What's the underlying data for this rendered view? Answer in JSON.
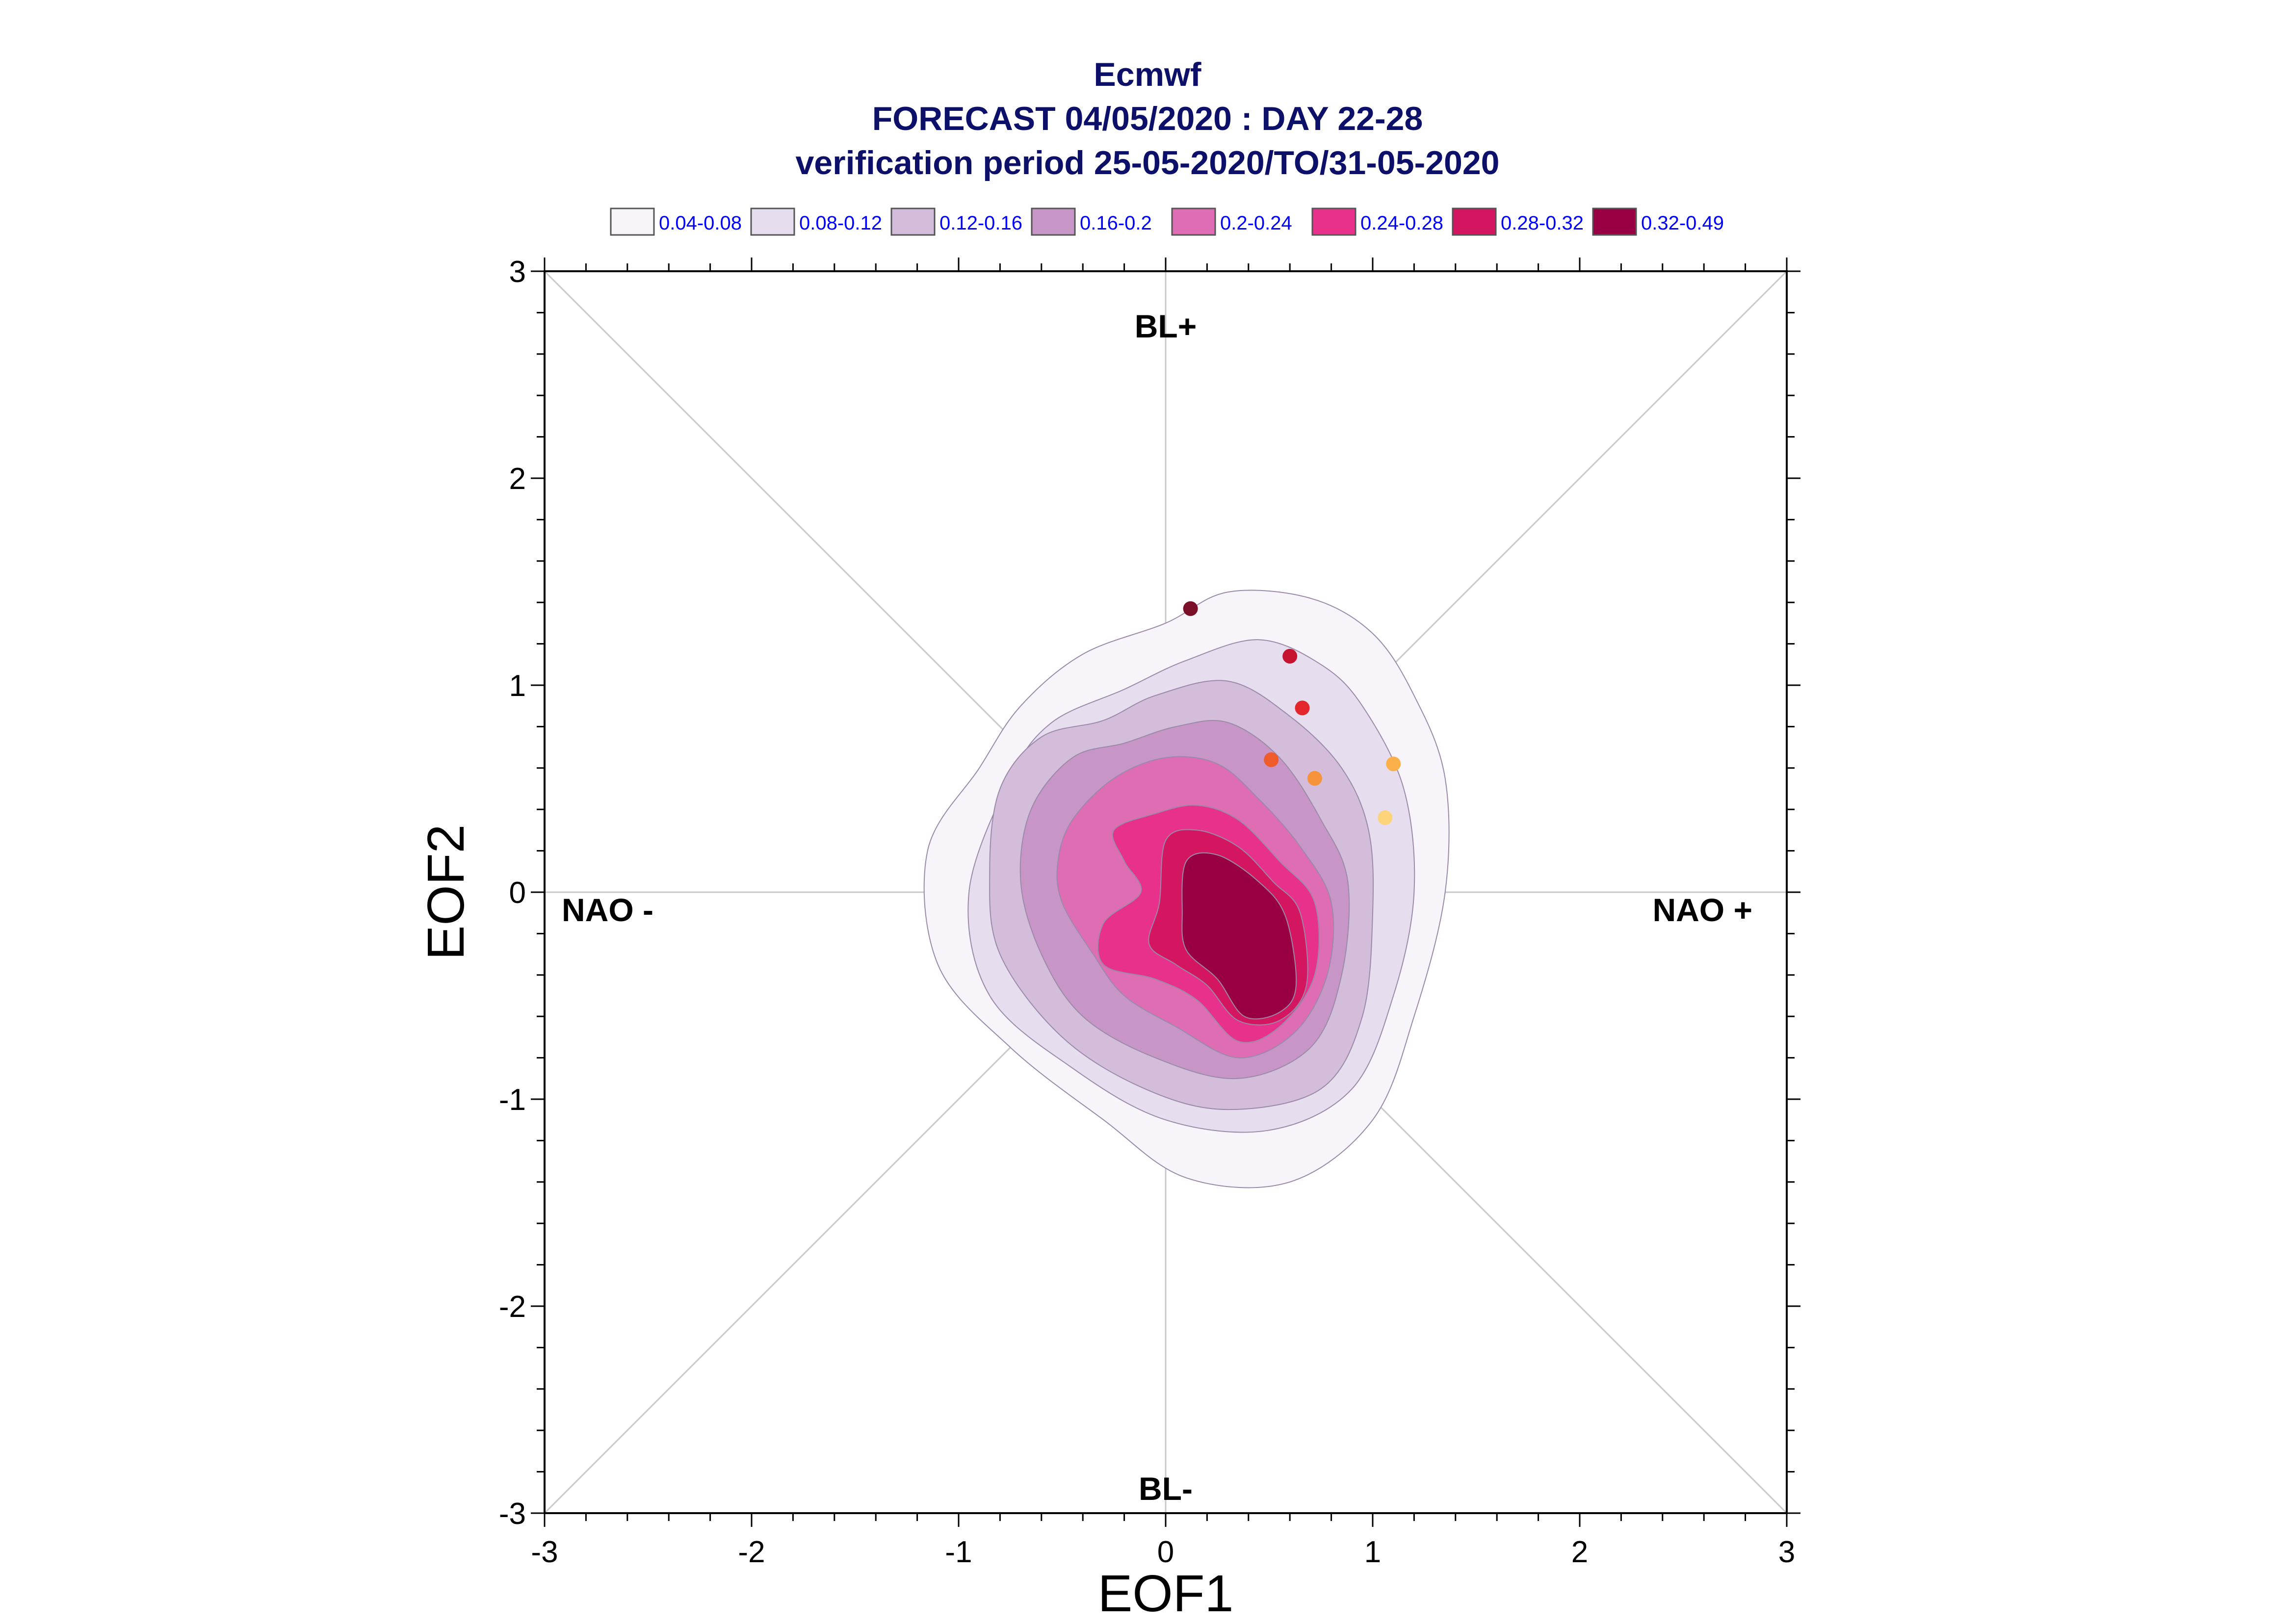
{
  "chart_data": {
    "type": "contour-scatter",
    "title_lines": [
      "Ecmwf",
      "FORECAST 04/05/2020 : DAY 22-28",
      "verification period 25-05-2020/TO/31-05-2020"
    ],
    "xlabel": "EOF1",
    "ylabel": "EOF2",
    "xlim": [
      -3,
      3
    ],
    "ylim": [
      -3,
      3
    ],
    "xticks": [
      -3,
      -2,
      -1,
      0,
      1,
      2,
      3
    ],
    "yticks": [
      -3,
      -2,
      -1,
      0,
      1,
      2,
      3
    ],
    "regime_labels": {
      "top": "BL+",
      "bottom": "BL-",
      "left": "NAO -",
      "right": "NAO +"
    },
    "legend": [
      {
        "label": "0.04-0.08",
        "color": "#f7f5fa"
      },
      {
        "label": "0.08-0.12",
        "color": "#e6deee"
      },
      {
        "label": "0.12-0.16",
        "color": "#d3bddb"
      },
      {
        "label": "0.16-0.2",
        "color": "#c796c7"
      },
      {
        "label": "0.2-0.24",
        "color": "#df6db3"
      },
      {
        "label": "0.24-0.28",
        "color": "#e8318a"
      },
      {
        "label": "0.28-0.32",
        "color": "#d41660"
      },
      {
        "label": "0.32-0.49",
        "color": "#980043"
      }
    ],
    "density_levels": [
      {
        "level": 0.04,
        "color": "#f7f5fa",
        "polygon": [
          [
            -0.9,
            0.6
          ],
          [
            -0.7,
            0.9
          ],
          [
            -0.4,
            1.15
          ],
          [
            0.0,
            1.3
          ],
          [
            0.3,
            1.45
          ],
          [
            0.7,
            1.42
          ],
          [
            1.0,
            1.25
          ],
          [
            1.2,
            0.95
          ],
          [
            1.35,
            0.55
          ],
          [
            1.35,
            0.0
          ],
          [
            1.2,
            -0.6
          ],
          [
            1.0,
            -1.1
          ],
          [
            0.6,
            -1.4
          ],
          [
            0.1,
            -1.38
          ],
          [
            -0.3,
            -1.1
          ],
          [
            -0.75,
            -0.75
          ],
          [
            -1.1,
            -0.35
          ],
          [
            -1.15,
            0.2
          ]
        ]
      },
      {
        "level": 0.08,
        "color": "#e6deee",
        "polygon": [
          [
            -0.75,
            0.55
          ],
          [
            -0.55,
            0.82
          ],
          [
            -0.2,
            0.98
          ],
          [
            0.1,
            1.12
          ],
          [
            0.45,
            1.22
          ],
          [
            0.75,
            1.1
          ],
          [
            0.95,
            0.9
          ],
          [
            1.15,
            0.5
          ],
          [
            1.2,
            0.0
          ],
          [
            1.1,
            -0.5
          ],
          [
            0.9,
            -0.95
          ],
          [
            0.5,
            -1.15
          ],
          [
            0.0,
            -1.1
          ],
          [
            -0.45,
            -0.85
          ],
          [
            -0.85,
            -0.5
          ],
          [
            -0.95,
            0.0
          ]
        ]
      },
      {
        "level": 0.12,
        "color": "#d3bddb",
        "polygon": [
          [
            -0.8,
            0.5
          ],
          [
            -0.6,
            0.75
          ],
          [
            -0.3,
            0.83
          ],
          [
            -0.05,
            0.95
          ],
          [
            0.3,
            1.02
          ],
          [
            0.6,
            0.85
          ],
          [
            0.85,
            0.6
          ],
          [
            0.98,
            0.3
          ],
          [
            1.0,
            -0.1
          ],
          [
            0.95,
            -0.6
          ],
          [
            0.75,
            -0.95
          ],
          [
            0.3,
            -1.05
          ],
          [
            -0.1,
            -0.95
          ],
          [
            -0.5,
            -0.7
          ],
          [
            -0.8,
            -0.3
          ],
          [
            -0.85,
            0.1
          ]
        ]
      },
      {
        "level": 0.16,
        "color": "#c796c7",
        "polygon": [
          [
            -0.65,
            0.4
          ],
          [
            -0.45,
            0.65
          ],
          [
            -0.2,
            0.72
          ],
          [
            0.05,
            0.8
          ],
          [
            0.3,
            0.82
          ],
          [
            0.55,
            0.65
          ],
          [
            0.75,
            0.35
          ],
          [
            0.88,
            0.05
          ],
          [
            0.85,
            -0.4
          ],
          [
            0.7,
            -0.75
          ],
          [
            0.35,
            -0.9
          ],
          [
            -0.05,
            -0.8
          ],
          [
            -0.4,
            -0.6
          ],
          [
            -0.6,
            -0.3
          ],
          [
            -0.7,
            0.05
          ]
        ]
      },
      {
        "level": 0.2,
        "color": "#df6db3",
        "polygon": [
          [
            -0.45,
            0.35
          ],
          [
            -0.25,
            0.55
          ],
          [
            0.0,
            0.65
          ],
          [
            0.25,
            0.62
          ],
          [
            0.45,
            0.45
          ],
          [
            0.65,
            0.22
          ],
          [
            0.8,
            -0.05
          ],
          [
            0.78,
            -0.4
          ],
          [
            0.62,
            -0.68
          ],
          [
            0.35,
            -0.8
          ],
          [
            0.05,
            -0.65
          ],
          [
            -0.2,
            -0.5
          ],
          [
            -0.35,
            -0.3
          ],
          [
            -0.5,
            -0.05
          ],
          [
            -0.52,
            0.15
          ]
        ]
      },
      {
        "level": 0.24,
        "color": "#e8318a",
        "polygon": [
          [
            -0.25,
            0.3
          ],
          [
            -0.05,
            0.38
          ],
          [
            0.15,
            0.42
          ],
          [
            0.35,
            0.35
          ],
          [
            0.55,
            0.15
          ],
          [
            0.72,
            -0.05
          ],
          [
            0.72,
            -0.4
          ],
          [
            0.55,
            -0.65
          ],
          [
            0.35,
            -0.72
          ],
          [
            0.15,
            -0.52
          ],
          [
            -0.05,
            -0.42
          ],
          [
            -0.3,
            -0.35
          ],
          [
            -0.3,
            -0.15
          ],
          [
            -0.12,
            0.0
          ],
          [
            -0.2,
            0.15
          ]
        ]
      },
      {
        "level": 0.28,
        "color": "#d41660",
        "polygon": [
          [
            0.0,
            0.25
          ],
          [
            0.15,
            0.3
          ],
          [
            0.35,
            0.22
          ],
          [
            0.52,
            0.05
          ],
          [
            0.65,
            -0.1
          ],
          [
            0.68,
            -0.45
          ],
          [
            0.55,
            -0.62
          ],
          [
            0.35,
            -0.62
          ],
          [
            0.2,
            -0.45
          ],
          [
            0.05,
            -0.35
          ],
          [
            -0.08,
            -0.25
          ],
          [
            -0.03,
            -0.05
          ]
        ]
      },
      {
        "level": 0.32,
        "color": "#980043",
        "polygon": [
          [
            0.1,
            0.15
          ],
          [
            0.25,
            0.18
          ],
          [
            0.45,
            0.05
          ],
          [
            0.58,
            -0.12
          ],
          [
            0.63,
            -0.45
          ],
          [
            0.55,
            -0.58
          ],
          [
            0.38,
            -0.6
          ],
          [
            0.25,
            -0.42
          ],
          [
            0.1,
            -0.28
          ],
          [
            0.08,
            -0.1
          ]
        ]
      }
    ],
    "trajectory_points": [
      {
        "x": 0.12,
        "y": 1.37,
        "color": "#7a0f2a"
      },
      {
        "x": 0.6,
        "y": 1.14,
        "color": "#c41230"
      },
      {
        "x": 0.66,
        "y": 0.89,
        "color": "#e3262b"
      },
      {
        "x": 0.51,
        "y": 0.64,
        "color": "#ef5b2a"
      },
      {
        "x": 0.72,
        "y": 0.55,
        "color": "#f7933b"
      },
      {
        "x": 1.1,
        "y": 0.62,
        "color": "#fbb04a"
      },
      {
        "x": 1.06,
        "y": 0.36,
        "color": "#fdd47a"
      }
    ],
    "grid": false,
    "legend_placement": "top"
  }
}
